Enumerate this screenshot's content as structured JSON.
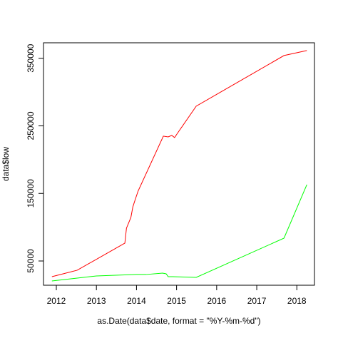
{
  "chart_data": {
    "type": "line",
    "x_label": "as.Date(data$date, format = \"%Y-%m-%d\")",
    "y_label": "data$low",
    "xlim": [
      2011.68,
      2018.44
    ],
    "xticks": [
      2012,
      2013,
      2014,
      2015,
      2016,
      2017,
      2018
    ],
    "ylim": [
      14100,
      373000
    ],
    "yticks": [
      50000,
      150000,
      250000,
      350000
    ],
    "series": [
      {
        "color": "#ff0000",
        "x": [
          2011.89,
          2012.52,
          2013.71,
          2013.75,
          2013.86,
          2013.91,
          2013.98,
          2014.04,
          2014.67,
          2014.79,
          2014.88,
          2014.95,
          2015.01,
          2015.49,
          2017.68,
          2018.25
        ],
        "values": [
          26800,
          36300,
          76400,
          98600,
          114400,
          130300,
          143000,
          153500,
          234800,
          233700,
          235900,
          232700,
          238000,
          279200,
          354100,
          361500
        ]
      },
      {
        "color": "#00ff00",
        "x": [
          2011.89,
          2012.52,
          2013.0,
          2014.0,
          2014.24,
          2014.65,
          2014.74,
          2014.79,
          2014.9,
          2015.49,
          2017.68,
          2018.25
        ],
        "values": [
          20400,
          24700,
          27800,
          30000,
          30000,
          32000,
          31000,
          26800,
          26800,
          25700,
          83800,
          163000
        ]
      }
    ]
  }
}
